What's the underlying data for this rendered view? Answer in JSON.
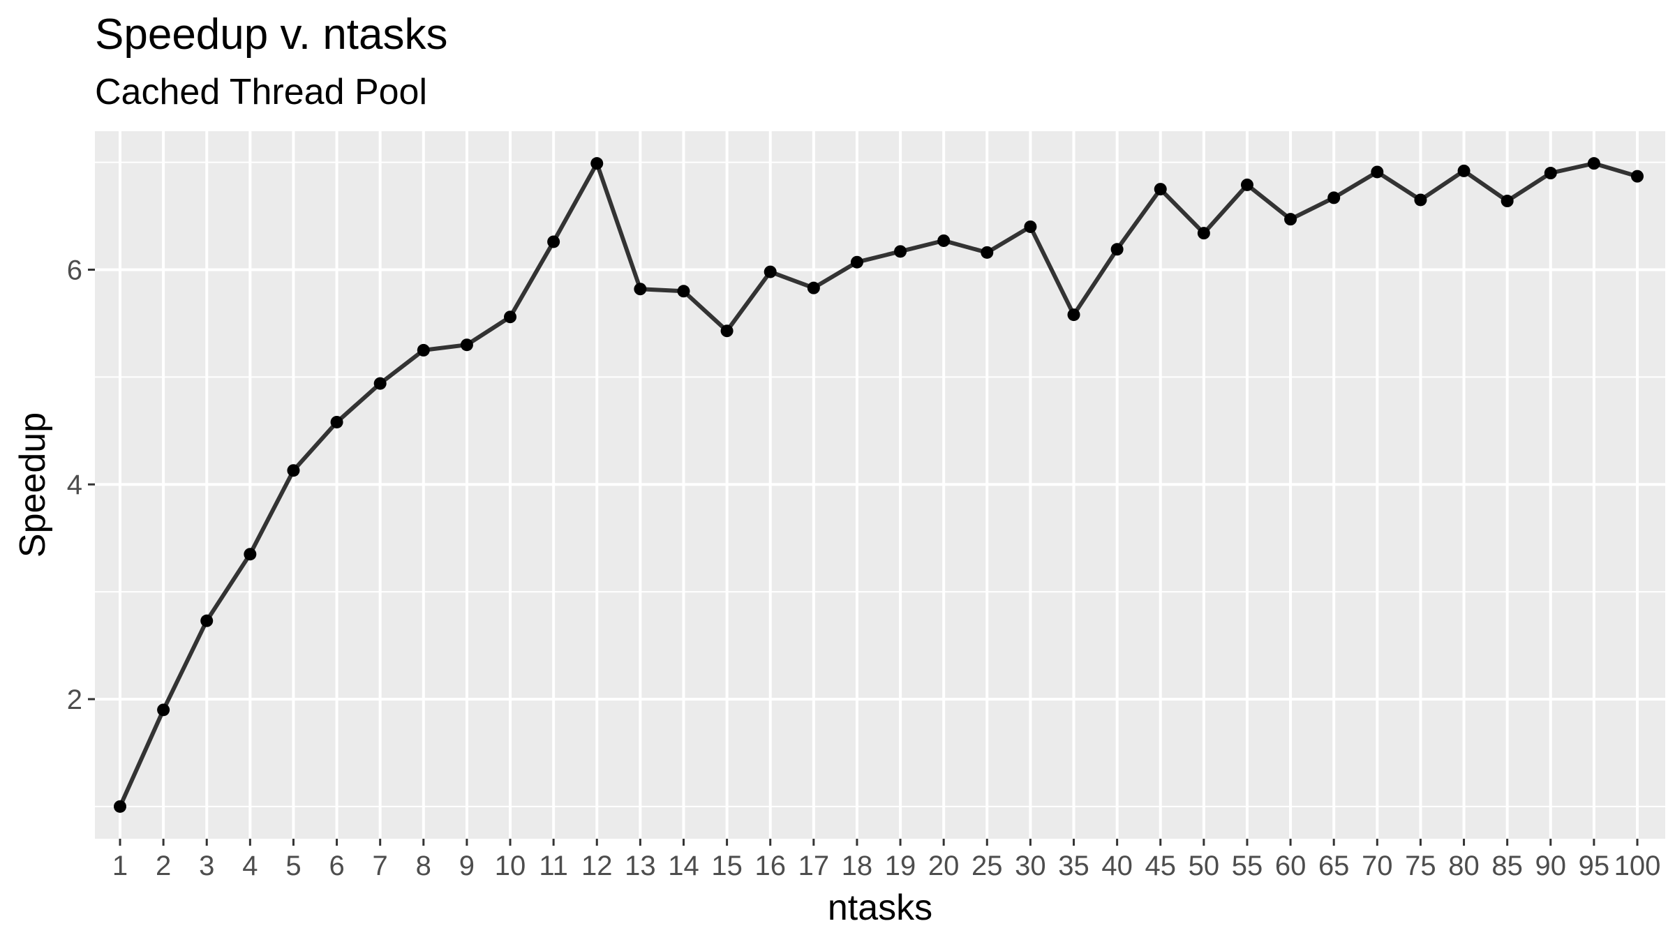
{
  "chart_data": {
    "type": "line",
    "title": "Speedup v. ntasks",
    "subtitle": "Cached Thread Pool",
    "xlabel": "ntasks",
    "ylabel": "Speedup",
    "categories": [
      "1",
      "2",
      "3",
      "4",
      "5",
      "6",
      "7",
      "8",
      "9",
      "10",
      "11",
      "12",
      "13",
      "14",
      "15",
      "16",
      "17",
      "18",
      "19",
      "20",
      "25",
      "30",
      "35",
      "40",
      "45",
      "50",
      "55",
      "60",
      "65",
      "70",
      "75",
      "80",
      "85",
      "90",
      "95",
      "100"
    ],
    "values": [
      1.0,
      1.9,
      2.73,
      3.35,
      4.13,
      4.58,
      4.94,
      5.25,
      5.3,
      5.56,
      6.26,
      6.99,
      5.82,
      5.8,
      5.43,
      5.98,
      5.83,
      6.07,
      6.17,
      6.27,
      6.16,
      6.4,
      5.58,
      6.19,
      6.75,
      6.34,
      6.79,
      6.47,
      6.67,
      6.91,
      6.65,
      6.92,
      6.64,
      6.9,
      6.99,
      6.87
    ],
    "yticks": [
      2,
      4,
      6
    ],
    "ylim": [
      0.7,
      7.29
    ],
    "grid": true,
    "colors": {
      "panel_bg": "#ebebeb",
      "grid": "#ffffff",
      "line": "#333333",
      "point": "#000000"
    }
  }
}
